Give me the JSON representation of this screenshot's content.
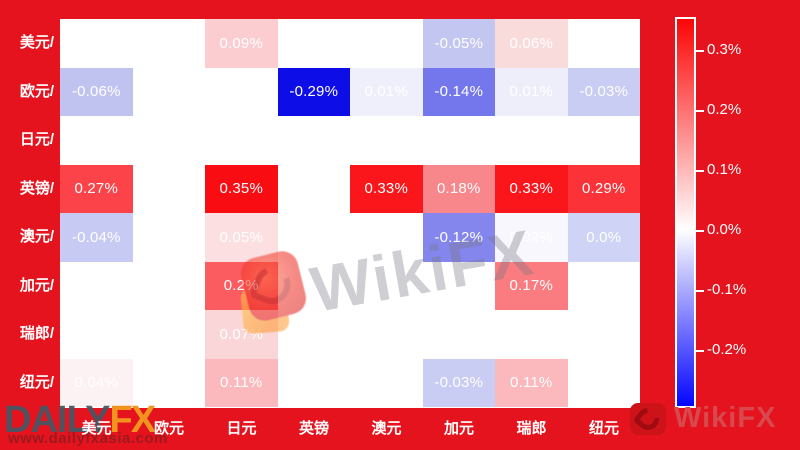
{
  "page": {
    "background_color": "#e5131e",
    "plot_background": "#ffffff"
  },
  "heatmap": {
    "row_labels": [
      "美元/",
      "欧元/",
      "日元/",
      "英镑/",
      "澳元/",
      "加元/",
      "瑞郎/",
      "纽元/"
    ],
    "col_labels": [
      "美元",
      "欧元",
      "日元",
      "英镑",
      "澳元",
      "加元",
      "瑞郎",
      "纽元"
    ],
    "cells": [
      {
        "row": 0,
        "col": 2,
        "value": "0.09%",
        "color": "#fbcdd1"
      },
      {
        "row": 0,
        "col": 5,
        "value": "-0.05%",
        "color": "#c3c6f0"
      },
      {
        "row": 0,
        "col": 6,
        "value": "0.06%",
        "color": "#fadbdc"
      },
      {
        "row": 1,
        "col": 0,
        "value": "-0.06%",
        "color": "#c0c3ef"
      },
      {
        "row": 1,
        "col": 3,
        "value": "-0.29%",
        "color": "#0d0de8"
      },
      {
        "row": 1,
        "col": 4,
        "value": "0.01%",
        "color": "#efeffb"
      },
      {
        "row": 1,
        "col": 5,
        "value": "-0.14%",
        "color": "#7477ec"
      },
      {
        "row": 1,
        "col": 6,
        "value": "0.01%",
        "color": "#eeeefb"
      },
      {
        "row": 1,
        "col": 7,
        "value": "-0.03%",
        "color": "#c9ccf3"
      },
      {
        "row": 3,
        "col": 0,
        "value": "0.27%",
        "color": "#fb4349"
      },
      {
        "row": 3,
        "col": 2,
        "value": "0.35%",
        "color": "#f90d13"
      },
      {
        "row": 3,
        "col": 4,
        "value": "0.33%",
        "color": "#fa161b"
      },
      {
        "row": 3,
        "col": 5,
        "value": "0.18%",
        "color": "#f8878c"
      },
      {
        "row": 3,
        "col": 6,
        "value": "0.33%",
        "color": "#fa161b"
      },
      {
        "row": 3,
        "col": 7,
        "value": "0.29%",
        "color": "#fb3338"
      },
      {
        "row": 4,
        "col": 0,
        "value": "-0.04%",
        "color": "#c7caf2"
      },
      {
        "row": 4,
        "col": 2,
        "value": "0.05%",
        "color": "#fcdfe1"
      },
      {
        "row": 4,
        "col": 5,
        "value": "-0.12%",
        "color": "#8486ee"
      },
      {
        "row": 4,
        "col": 6,
        "value": "0.02%",
        "color": "#f7f7fd"
      },
      {
        "row": 4,
        "col": 7,
        "value": "0.0%",
        "color": "#cfd3f6"
      },
      {
        "row": 5,
        "col": 2,
        "value": "0.2%",
        "color": "#fa5c60"
      },
      {
        "row": 5,
        "col": 6,
        "value": "0.17%",
        "color": "#fa7c80"
      },
      {
        "row": 6,
        "col": 2,
        "value": "0.07%",
        "color": "#fbd6d8"
      },
      {
        "row": 7,
        "col": 0,
        "value": "0.04%",
        "color": "#fdf2f3"
      },
      {
        "row": 7,
        "col": 2,
        "value": "0.11%",
        "color": "#fbb9bd"
      },
      {
        "row": 7,
        "col": 5,
        "value": "-0.03%",
        "color": "#c9ccf3"
      },
      {
        "row": 7,
        "col": 6,
        "value": "0.11%",
        "color": "#fbb9bd"
      }
    ]
  },
  "colorbar": {
    "tick_labels": [
      "0.3%",
      "0.2%",
      "0.1%",
      "0.0%",
      "-0.1%",
      "-0.2%"
    ],
    "gradient_top": "#fd0505",
    "gradient_mid": "#ffffff",
    "gradient_bottom": "#0505fd",
    "mid_position_pct": 54.5
  },
  "watermarks": {
    "center_text": "WikiFX",
    "dailyfx": {
      "daily": "DAILY",
      "fx": "FX",
      "url": "www.dailyfxasia.com"
    },
    "wikifx_footer_label": "WikiFX"
  },
  "chart_data": {
    "type": "heatmap",
    "title": "",
    "x_categories": [
      "美元",
      "欧元",
      "日元",
      "英镑",
      "澳元",
      "加元",
      "瑞郎",
      "纽元"
    ],
    "y_categories": [
      "美元/",
      "欧元/",
      "日元/",
      "英镑/",
      "澳元/",
      "加元/",
      "瑞郎/",
      "纽元/"
    ],
    "values_pct": [
      [
        null,
        null,
        0.09,
        null,
        null,
        -0.05,
        0.06,
        null
      ],
      [
        -0.06,
        null,
        null,
        -0.29,
        0.01,
        -0.14,
        0.01,
        -0.03
      ],
      [
        null,
        null,
        null,
        null,
        null,
        null,
        null,
        null
      ],
      [
        0.27,
        null,
        0.35,
        null,
        0.33,
        0.18,
        0.33,
        0.29
      ],
      [
        -0.04,
        null,
        0.05,
        null,
        null,
        -0.12,
        0.02,
        0.0
      ],
      [
        null,
        null,
        0.2,
        null,
        null,
        null,
        0.17,
        null
      ],
      [
        null,
        null,
        0.07,
        null,
        null,
        null,
        null,
        null
      ],
      [
        0.04,
        null,
        0.11,
        null,
        null,
        -0.03,
        0.11,
        null
      ]
    ],
    "colorbar_ticks_pct": [
      0.3,
      0.2,
      0.1,
      0.0,
      -0.1,
      -0.2
    ],
    "color_scale": "blue-white-red",
    "value_range_pct": [
      -0.29,
      0.35
    ],
    "legend_position": "right",
    "grid": false
  }
}
